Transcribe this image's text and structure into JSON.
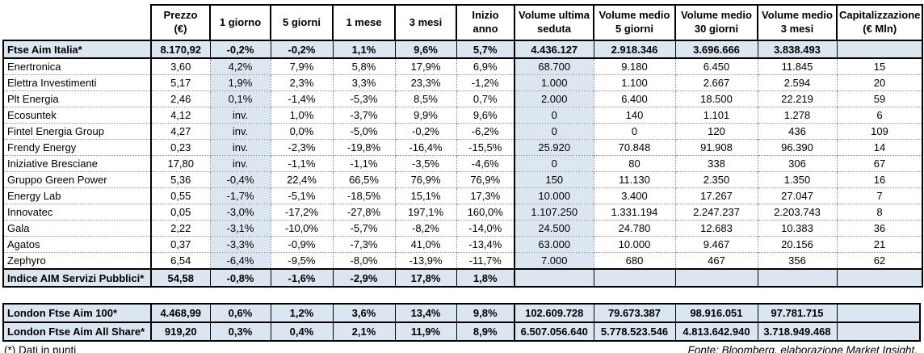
{
  "colors": {
    "column_highlight": "#dce6f1",
    "index_row_band": "#dce6f1",
    "border": "#000000"
  },
  "chart_data": {
    "type": "table",
    "columns": [
      "",
      "Prezzo\n(€)",
      "1 giorno",
      "5 giorni",
      "1 mese",
      "3 mesi",
      "Inizio anno",
      "Volume ultima\nseduta",
      "Volume medio\n5 giorni",
      "Volume medio\n30 giorni",
      "Volume medio\n3 mesi",
      "Capitalizzazione\n(€ Mln)"
    ],
    "rows": [
      {
        "name": "Ftse Aim Italia*",
        "type": "index",
        "v": [
          "8.170,92",
          "-0,2%",
          "-0,2%",
          "1,1%",
          "9,6%",
          "5,7%",
          "4.436.127",
          "2.918.346",
          "3.696.666",
          "3.838.493",
          ""
        ]
      },
      {
        "name": "Enertronica",
        "v": [
          "3,60",
          "4,2%",
          "7,9%",
          "5,8%",
          "17,9%",
          "6,9%",
          "68.700",
          "9.180",
          "6.450",
          "11.845",
          "15"
        ]
      },
      {
        "name": "Elettra Investimenti",
        "v": [
          "5,17",
          "1,9%",
          "2,3%",
          "3,3%",
          "23,3%",
          "-1,2%",
          "1.000",
          "1.100",
          "2.667",
          "2.594",
          "20"
        ]
      },
      {
        "name": "Plt Energia",
        "v": [
          "2,46",
          "0,1%",
          "-1,4%",
          "-5,3%",
          "8,5%",
          "0,7%",
          "2.000",
          "6.400",
          "18.500",
          "22.219",
          "59"
        ]
      },
      {
        "name": "Ecosuntek",
        "v": [
          "4,12",
          "inv.",
          "1,0%",
          "-3,7%",
          "9,9%",
          "9,6%",
          "0",
          "140",
          "1.101",
          "1.278",
          "6"
        ]
      },
      {
        "name": "Fintel Energia Group",
        "v": [
          "4,27",
          "inv.",
          "0,0%",
          "-5,0%",
          "-0,2%",
          "-6,2%",
          "0",
          "0",
          "120",
          "436",
          "109"
        ]
      },
      {
        "name": "Frendy Energy",
        "v": [
          "0,23",
          "inv.",
          "-2,3%",
          "-19,8%",
          "-16,4%",
          "-15,5%",
          "25.920",
          "70.848",
          "91.908",
          "96.390",
          "14"
        ]
      },
      {
        "name": "Iniziative Bresciane",
        "v": [
          "17,80",
          "inv.",
          "-1,1%",
          "-1,1%",
          "-3,5%",
          "-4,6%",
          "0",
          "80",
          "338",
          "306",
          "67"
        ]
      },
      {
        "name": "Gruppo Green Power",
        "v": [
          "5,36",
          "-0,4%",
          "22,4%",
          "66,5%",
          "76,9%",
          "76,9%",
          "150",
          "11.130",
          "2.350",
          "1.350",
          "16"
        ]
      },
      {
        "name": "Energy Lab",
        "v": [
          "0,55",
          "-1,7%",
          "-5,1%",
          "-18,5%",
          "15,1%",
          "17,3%",
          "10.000",
          "3.400",
          "17.267",
          "27.047",
          "7"
        ]
      },
      {
        "name": "Innovatec",
        "v": [
          "0,05",
          "-3,0%",
          "-17,2%",
          "-27,8%",
          "197,1%",
          "160,0%",
          "1.107.250",
          "1.331.194",
          "2.247.237",
          "2.203.743",
          "8"
        ]
      },
      {
        "name": "Gala",
        "v": [
          "2,22",
          "-3,1%",
          "-10,0%",
          "-5,7%",
          "-8,2%",
          "-14,0%",
          "24.500",
          "24.780",
          "12.683",
          "10.383",
          "36"
        ]
      },
      {
        "name": "Agatos",
        "v": [
          "0,37",
          "-3,3%",
          "-0,9%",
          "-7,3%",
          "41,0%",
          "-13,4%",
          "63.000",
          "10.000",
          "9.467",
          "20.156",
          "21"
        ]
      },
      {
        "name": "Zephyro",
        "v": [
          "6,54",
          "-6,4%",
          "-9,5%",
          "-8,0%",
          "-13,9%",
          "-11,7%",
          "7.000",
          "680",
          "467",
          "356",
          "62"
        ]
      },
      {
        "name": "Indice AIM Servizi Pubblici*",
        "type": "index",
        "v": [
          "54,58",
          "-0,8%",
          "-1,6%",
          "-2,9%",
          "17,8%",
          "1,8%",
          "",
          "",
          "",
          "",
          ""
        ]
      }
    ],
    "london_rows": [
      {
        "name": "London Ftse Aim 100*",
        "type": "index",
        "v": [
          "4.468,99",
          "0,6%",
          "1,2%",
          "3,6%",
          "13,4%",
          "9,8%",
          "102.609.728",
          "79.673.387",
          "98.916.051",
          "97.781.715",
          ""
        ]
      },
      {
        "name": "London Ftse Aim All Share*",
        "type": "index",
        "v": [
          "919,20",
          "0,3%",
          "0,4%",
          "2,1%",
          "11,9%",
          "8,9%",
          "6.507.056.640",
          "5.778.523.546",
          "4.813.642.940",
          "3.718.949.468",
          ""
        ]
      }
    ]
  },
  "footer": {
    "note": "(*) Dati in punti",
    "source": "Fonte: Bloomberg, elaborazione Market Insight."
  }
}
